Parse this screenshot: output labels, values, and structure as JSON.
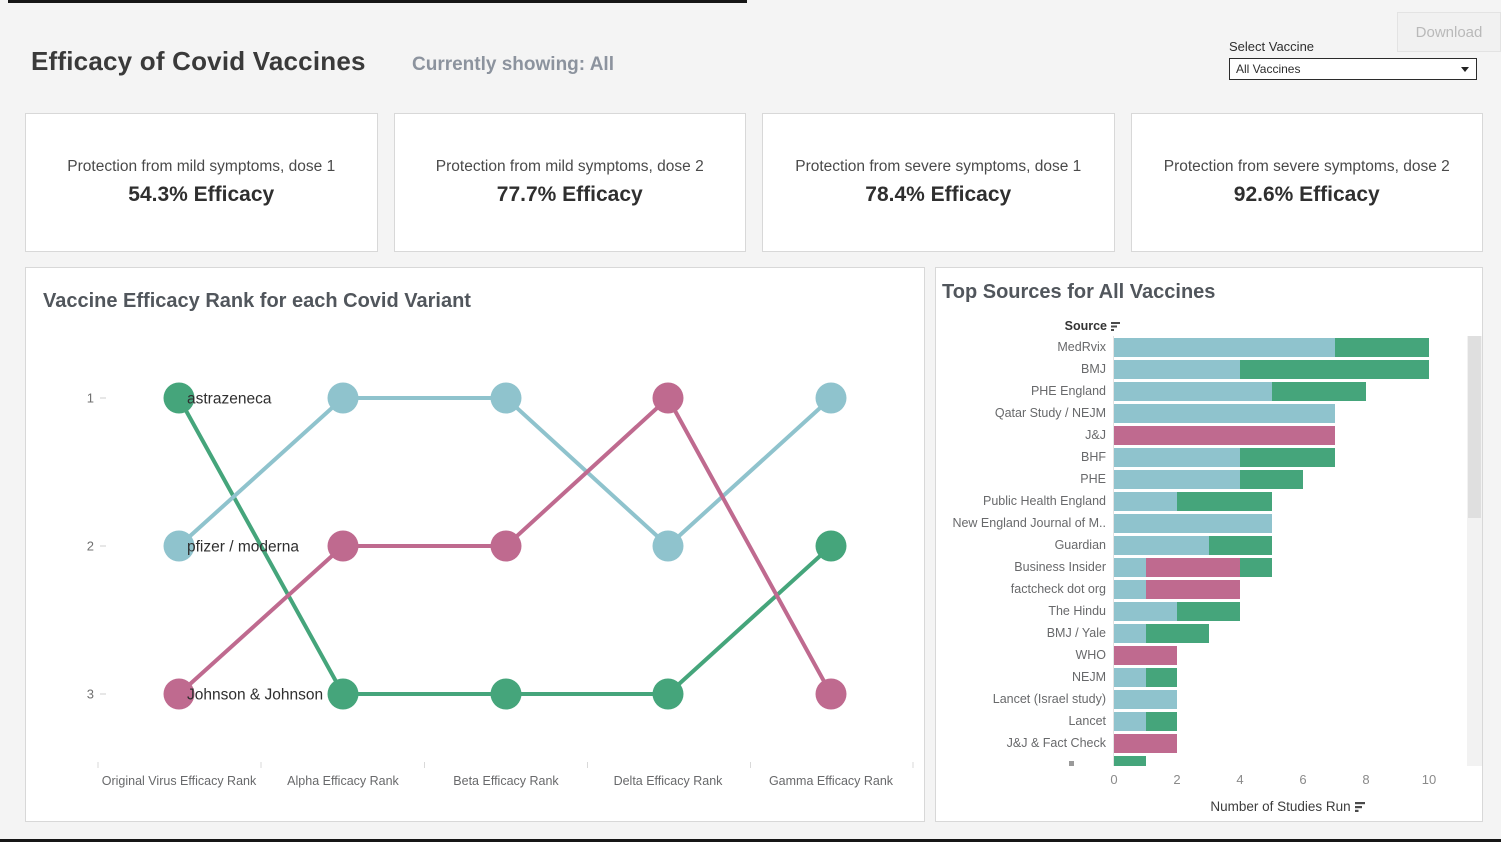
{
  "header": {
    "title": "Efficacy of Covid Vaccines",
    "subtitle": "Currently showing: All",
    "download_label": "Download",
    "select_vaccine_label": "Select Vaccine",
    "select_vaccine_value": "All Vaccines"
  },
  "kpi_cards": [
    {
      "label": "Protection from mild symptoms, dose 1",
      "value": "54.3% Efficacy"
    },
    {
      "label": "Protection from mild symptoms, dose 2",
      "value": "77.7% Efficacy"
    },
    {
      "label": "Protection from severe symptoms, dose 1",
      "value": "78.4% Efficacy"
    },
    {
      "label": "Protection from severe symptoms, dose 2",
      "value": "92.6% Efficacy"
    }
  ],
  "palette": {
    "teal": "#8fc3cd",
    "green": "#45a57b",
    "pink": "#bf6a8f"
  },
  "chart_data": [
    {
      "type": "line",
      "title": "Vaccine Efficacy Rank for each Covid Variant",
      "categories": [
        "Original Virus Efficacy Rank",
        "Alpha Efficacy Rank",
        "Beta Efficacy Rank",
        "Delta Efficacy Rank",
        "Gamma Efficacy Rank"
      ],
      "yticks": [
        1,
        2,
        3
      ],
      "ylim": [
        1,
        3
      ],
      "series": [
        {
          "name": "astrazeneca",
          "color": "#45a57b",
          "ranks": [
            1,
            3,
            3,
            3,
            2
          ]
        },
        {
          "name": "pfizer / moderna",
          "color": "#8fc3cd",
          "ranks": [
            2,
            1,
            1,
            2,
            1
          ]
        },
        {
          "name": "Johnson & Johnson",
          "color": "#bf6a8f",
          "ranks": [
            3,
            2,
            2,
            1,
            3
          ]
        }
      ]
    },
    {
      "type": "bar",
      "title": "Top Sources for All Vaccines",
      "column_header": "Source",
      "xlabel": "Number of Studies Run",
      "xticks": [
        0,
        2,
        4,
        6,
        8,
        10
      ],
      "xlim": [
        0,
        11.2
      ],
      "orientation": "horizontal",
      "stacked": true,
      "rows": [
        {
          "source": "MedRvix",
          "segments": [
            {
              "color": "#8fc3cd",
              "value": 7
            },
            {
              "color": "#45a57b",
              "value": 3
            }
          ]
        },
        {
          "source": "BMJ",
          "segments": [
            {
              "color": "#8fc3cd",
              "value": 4
            },
            {
              "color": "#45a57b",
              "value": 6
            }
          ]
        },
        {
          "source": "PHE England",
          "segments": [
            {
              "color": "#8fc3cd",
              "value": 5
            },
            {
              "color": "#45a57b",
              "value": 3
            }
          ]
        },
        {
          "source": "Qatar Study / NEJM",
          "segments": [
            {
              "color": "#8fc3cd",
              "value": 7
            }
          ]
        },
        {
          "source": "J&J",
          "segments": [
            {
              "color": "#bf6a8f",
              "value": 7
            }
          ]
        },
        {
          "source": "BHF",
          "segments": [
            {
              "color": "#8fc3cd",
              "value": 4
            },
            {
              "color": "#45a57b",
              "value": 3
            }
          ]
        },
        {
          "source": "PHE",
          "segments": [
            {
              "color": "#8fc3cd",
              "value": 4
            },
            {
              "color": "#45a57b",
              "value": 2
            }
          ]
        },
        {
          "source": "Public Health England",
          "segments": [
            {
              "color": "#8fc3cd",
              "value": 2
            },
            {
              "color": "#45a57b",
              "value": 3
            }
          ]
        },
        {
          "source": "New England Journal of M..",
          "segments": [
            {
              "color": "#8fc3cd",
              "value": 5
            }
          ]
        },
        {
          "source": "Guardian",
          "segments": [
            {
              "color": "#8fc3cd",
              "value": 3
            },
            {
              "color": "#45a57b",
              "value": 2
            }
          ]
        },
        {
          "source": "Business Insider",
          "segments": [
            {
              "color": "#8fc3cd",
              "value": 1
            },
            {
              "color": "#bf6a8f",
              "value": 3
            },
            {
              "color": "#45a57b",
              "value": 1
            }
          ]
        },
        {
          "source": "factcheck dot org",
          "segments": [
            {
              "color": "#8fc3cd",
              "value": 1
            },
            {
              "color": "#bf6a8f",
              "value": 3
            }
          ]
        },
        {
          "source": "The Hindu",
          "segments": [
            {
              "color": "#8fc3cd",
              "value": 2
            },
            {
              "color": "#45a57b",
              "value": 2
            }
          ]
        },
        {
          "source": "BMJ / Yale",
          "segments": [
            {
              "color": "#8fc3cd",
              "value": 1
            },
            {
              "color": "#45a57b",
              "value": 2
            }
          ]
        },
        {
          "source": "WHO",
          "segments": [
            {
              "color": "#bf6a8f",
              "value": 2
            }
          ]
        },
        {
          "source": "NEJM",
          "segments": [
            {
              "color": "#8fc3cd",
              "value": 1
            },
            {
              "color": "#45a57b",
              "value": 1
            }
          ]
        },
        {
          "source": "Lancet (Israel study)",
          "segments": [
            {
              "color": "#8fc3cd",
              "value": 2
            }
          ]
        },
        {
          "source": "Lancet",
          "segments": [
            {
              "color": "#8fc3cd",
              "value": 1
            },
            {
              "color": "#45a57b",
              "value": 1
            }
          ]
        },
        {
          "source": "J&J & Fact Check",
          "segments": [
            {
              "color": "#bf6a8f",
              "value": 2
            }
          ]
        },
        {
          "source": "",
          "clipped": true,
          "segments": [
            {
              "color": "#45a57b",
              "value": 1
            }
          ]
        }
      ]
    }
  ]
}
